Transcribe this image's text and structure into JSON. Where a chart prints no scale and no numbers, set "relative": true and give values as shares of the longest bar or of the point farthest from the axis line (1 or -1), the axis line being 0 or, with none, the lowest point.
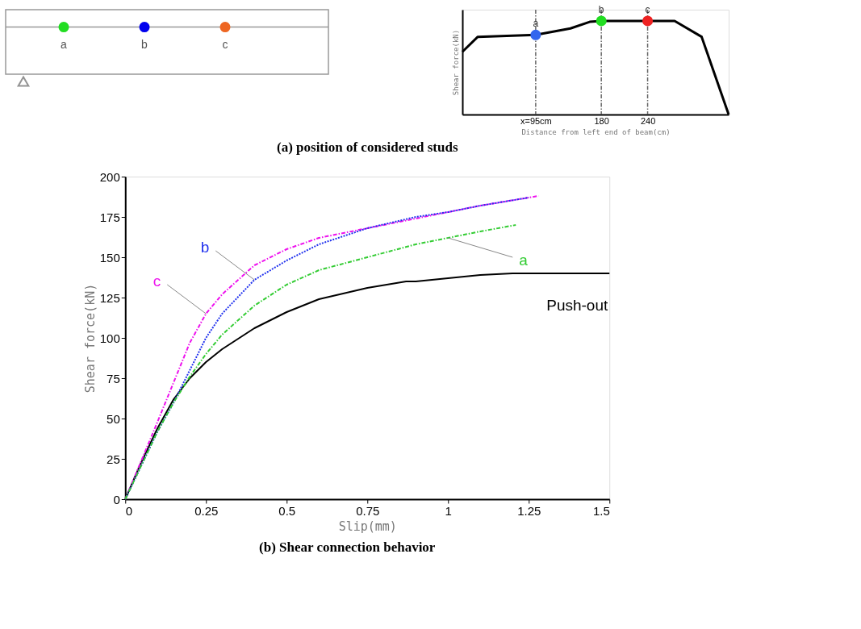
{
  "chart_data": [
    {
      "type": "other",
      "title": "(a) position of considered studs",
      "annotations": [
        "a",
        "b",
        "c"
      ],
      "colors": [
        "#22dd22",
        "#0000ee",
        "#ee6622"
      ]
    },
    {
      "type": "line",
      "relative": true,
      "xlabel": "Distance from left end of beam(cm)",
      "ylabel": "Shear force(kN)",
      "tick_labels": "x",
      "xlim": [
        0,
        345
      ],
      "xticks": [
        {
          "value": 95,
          "label": "x=95cm"
        },
        180,
        240
      ],
      "grid": false,
      "series": [
        {
          "type": "line",
          "color": "#000000",
          "x": [
            0,
            20,
            95,
            140,
            165,
            180,
            240,
            275,
            310,
            345
          ],
          "values": [
            0.67,
            0.83,
            0.85,
            0.92,
            0.99,
            1,
            1,
            1,
            0.83,
            0
          ]
        },
        {
          "type": "scatter",
          "x": [
            95,
            180,
            240
          ],
          "values": [
            0.85,
            1,
            1
          ],
          "colors": [
            "#3366ee",
            "#22dd22",
            "#ee2222"
          ]
        }
      ],
      "annotations": [
        {
          "text": "a",
          "x": 95,
          "y": 0.85
        },
        {
          "text": "b",
          "x": 180,
          "y": 1
        },
        {
          "text": "c",
          "x": 240,
          "y": 1
        }
      ],
      "ref_lines": [
        {
          "axis": "x",
          "value": 95,
          "line_style": "dashed",
          "color": "#666666"
        },
        {
          "axis": "x",
          "value": 180,
          "line_style": "dashed",
          "color": "#666666"
        },
        {
          "axis": "x",
          "value": 240,
          "line_style": "dashed",
          "color": "#666666"
        }
      ]
    },
    {
      "type": "line",
      "title": "(b) Shear connection behavior",
      "xlabel": "Slip(mm)",
      "ylabel": "Shear force(kN)",
      "xlim": [
        0,
        1.5
      ],
      "xticks": [
        0,
        0.25,
        0.5,
        0.75,
        1,
        1.25,
        1.5
      ],
      "ylim": [
        0,
        200
      ],
      "yticks": [
        0,
        25,
        50,
        75,
        100,
        125,
        150,
        175,
        200
      ],
      "grid": false,
      "series": [
        {
          "name": "Push-out",
          "color": "#000000",
          "line_style": "solid",
          "x": [
            0,
            0.05,
            0.1,
            0.15,
            0.2,
            0.25,
            0.3,
            0.4,
            0.5,
            0.6,
            0.75,
            0.87,
            0.9,
            1,
            1.1,
            1.2,
            1.3,
            1.5
          ],
          "values": [
            0,
            23,
            44,
            62,
            75,
            85,
            93,
            106,
            116,
            124,
            131,
            135,
            135,
            137,
            139,
            140,
            140,
            140
          ]
        },
        {
          "name": "a",
          "color": "#33cc33",
          "line_style": "dashed",
          "x": [
            0,
            0.1,
            0.15,
            0.2,
            0.25,
            0.3,
            0.4,
            0.5,
            0.6,
            0.75,
            0.9,
            1,
            1.1,
            1.21
          ],
          "values": [
            0,
            42,
            60,
            76,
            90,
            102,
            120,
            133,
            142,
            150,
            158,
            162,
            166,
            170
          ]
        },
        {
          "name": "b",
          "color": "#2233ee",
          "line_style": "dotted",
          "x": [
            0,
            0.1,
            0.15,
            0.2,
            0.25,
            0.3,
            0.4,
            0.5,
            0.6,
            0.75,
            0.9,
            1,
            1.1,
            1.25
          ],
          "values": [
            0,
            42,
            60,
            80,
            100,
            115,
            136,
            148,
            158,
            168,
            175,
            178,
            182,
            187
          ]
        },
        {
          "name": "c",
          "color": "#ee11ee",
          "line_style": "dashed",
          "x": [
            0,
            0.1,
            0.2,
            0.25,
            0.3,
            0.4,
            0.5,
            0.6,
            0.75,
            0.9,
            1,
            1.1,
            1.28
          ],
          "values": [
            0,
            48,
            97,
            115,
            127,
            145,
            155,
            162,
            168,
            174,
            178,
            182,
            188
          ]
        }
      ]
    }
  ]
}
